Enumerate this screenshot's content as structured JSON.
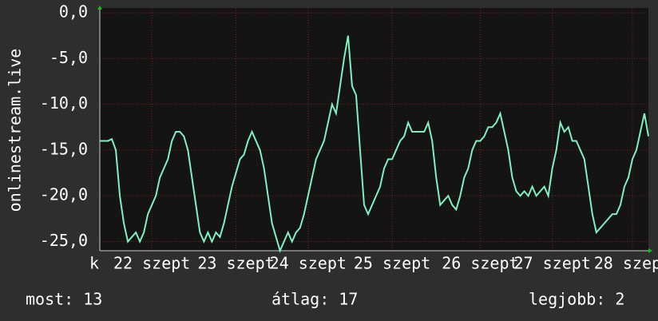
{
  "chart_data": {
    "type": "line",
    "ylabel": "onlinestream.live",
    "x": [
      0,
      1,
      2,
      3,
      4,
      5,
      6,
      7,
      8,
      9,
      10,
      11,
      12,
      13,
      14,
      15,
      16,
      17,
      18,
      19,
      20,
      21,
      22,
      23,
      24,
      25,
      26,
      27,
      28,
      29,
      30,
      31,
      32,
      33,
      34,
      35,
      36,
      37,
      38,
      39,
      40,
      41,
      42,
      43,
      44,
      45,
      46,
      47,
      48,
      49,
      50,
      51,
      52,
      53,
      54,
      55,
      56,
      57,
      58,
      59,
      60,
      61,
      62,
      63,
      64,
      65,
      66,
      67,
      68,
      69,
      70,
      71,
      72,
      73,
      74,
      75,
      76,
      77,
      78,
      79,
      80,
      81,
      82,
      83,
      84,
      85,
      86,
      87,
      88,
      89,
      90,
      91,
      92,
      93,
      94,
      95,
      96,
      97,
      98,
      99,
      100,
      101,
      102,
      103,
      104,
      105,
      106,
      107,
      108,
      109,
      110,
      111,
      112,
      113,
      114,
      115,
      116,
      117,
      118,
      119,
      120,
      121,
      122,
      123,
      124,
      125,
      126,
      127,
      128,
      129,
      130,
      131,
      132,
      133,
      134,
      135,
      136,
      137
    ],
    "series": [
      {
        "color": "#7ff0c0",
        "values": [
          -14,
          -14,
          -14,
          -13.8,
          -15,
          -20,
          -23,
          -25,
          -24.5,
          -24,
          -25,
          -24,
          -22,
          -21,
          -20,
          -18,
          -17,
          -16,
          -14,
          -13,
          -13,
          -13.5,
          -15,
          -18,
          -21,
          -24,
          -25,
          -24,
          -25,
          -24,
          -24.5,
          -23,
          -21,
          -19,
          -17.5,
          -16,
          -15.5,
          -14,
          -13,
          -14,
          -15,
          -17,
          -20,
          -23,
          -24.5,
          -26,
          -25,
          -24,
          -25,
          -24,
          -23.5,
          -22,
          -20,
          -18,
          -16,
          -15,
          -14,
          -12,
          -10,
          -11,
          -8,
          -5,
          -2.5,
          -8,
          -9,
          -15,
          -21,
          -22,
          -21,
          -20,
          -19,
          -17,
          -16,
          -16,
          -15,
          -14,
          -13.5,
          -12,
          -13,
          -13,
          -13,
          -13,
          -12,
          -14,
          -18,
          -21,
          -20.5,
          -20,
          -21,
          -21.5,
          -20,
          -18,
          -17,
          -15,
          -14,
          -14,
          -13.5,
          -12.5,
          -12.5,
          -12,
          -11,
          -13,
          -15,
          -18,
          -19.5,
          -20,
          -19.5,
          -20,
          -19,
          -20,
          -19.5,
          -19,
          -20,
          -17,
          -15,
          -12,
          -13,
          -12.5,
          -14,
          -14,
          -15,
          -16,
          -19,
          -22,
          -24,
          -23.5,
          -23,
          -22.5,
          -22,
          -22,
          -21,
          -19,
          -18,
          -16,
          -15,
          -13,
          -11,
          -13.5
        ]
      }
    ],
    "xlim": [
      0,
      137
    ],
    "xticks": [
      {
        "value": -1.4,
        "label": "k"
      },
      {
        "value": 13,
        "label": "22 szept"
      },
      {
        "value": 34,
        "label": "23 szept"
      },
      {
        "value": 52,
        "label": "24 szept"
      },
      {
        "value": 73,
        "label": "25 szept"
      },
      {
        "value": 95,
        "label": "26 szept"
      },
      {
        "value": 113,
        "label": "27 szept"
      },
      {
        "value": 133,
        "label": "28 szept"
      }
    ],
    "ylim": [
      -26,
      0
    ],
    "yticks": [
      {
        "value": 0,
        "label": "0,0"
      },
      {
        "value": -5,
        "label": "-5,0"
      },
      {
        "value": -10,
        "label": "-10,0"
      },
      {
        "value": -15,
        "label": "-15,0"
      },
      {
        "value": -20,
        "label": "-20,0"
      },
      {
        "value": -25,
        "label": "-25,0"
      }
    ],
    "grid": true
  },
  "footer": {
    "current": "most: 13",
    "average": "átlag: 17",
    "best": "legjobb: 2"
  }
}
